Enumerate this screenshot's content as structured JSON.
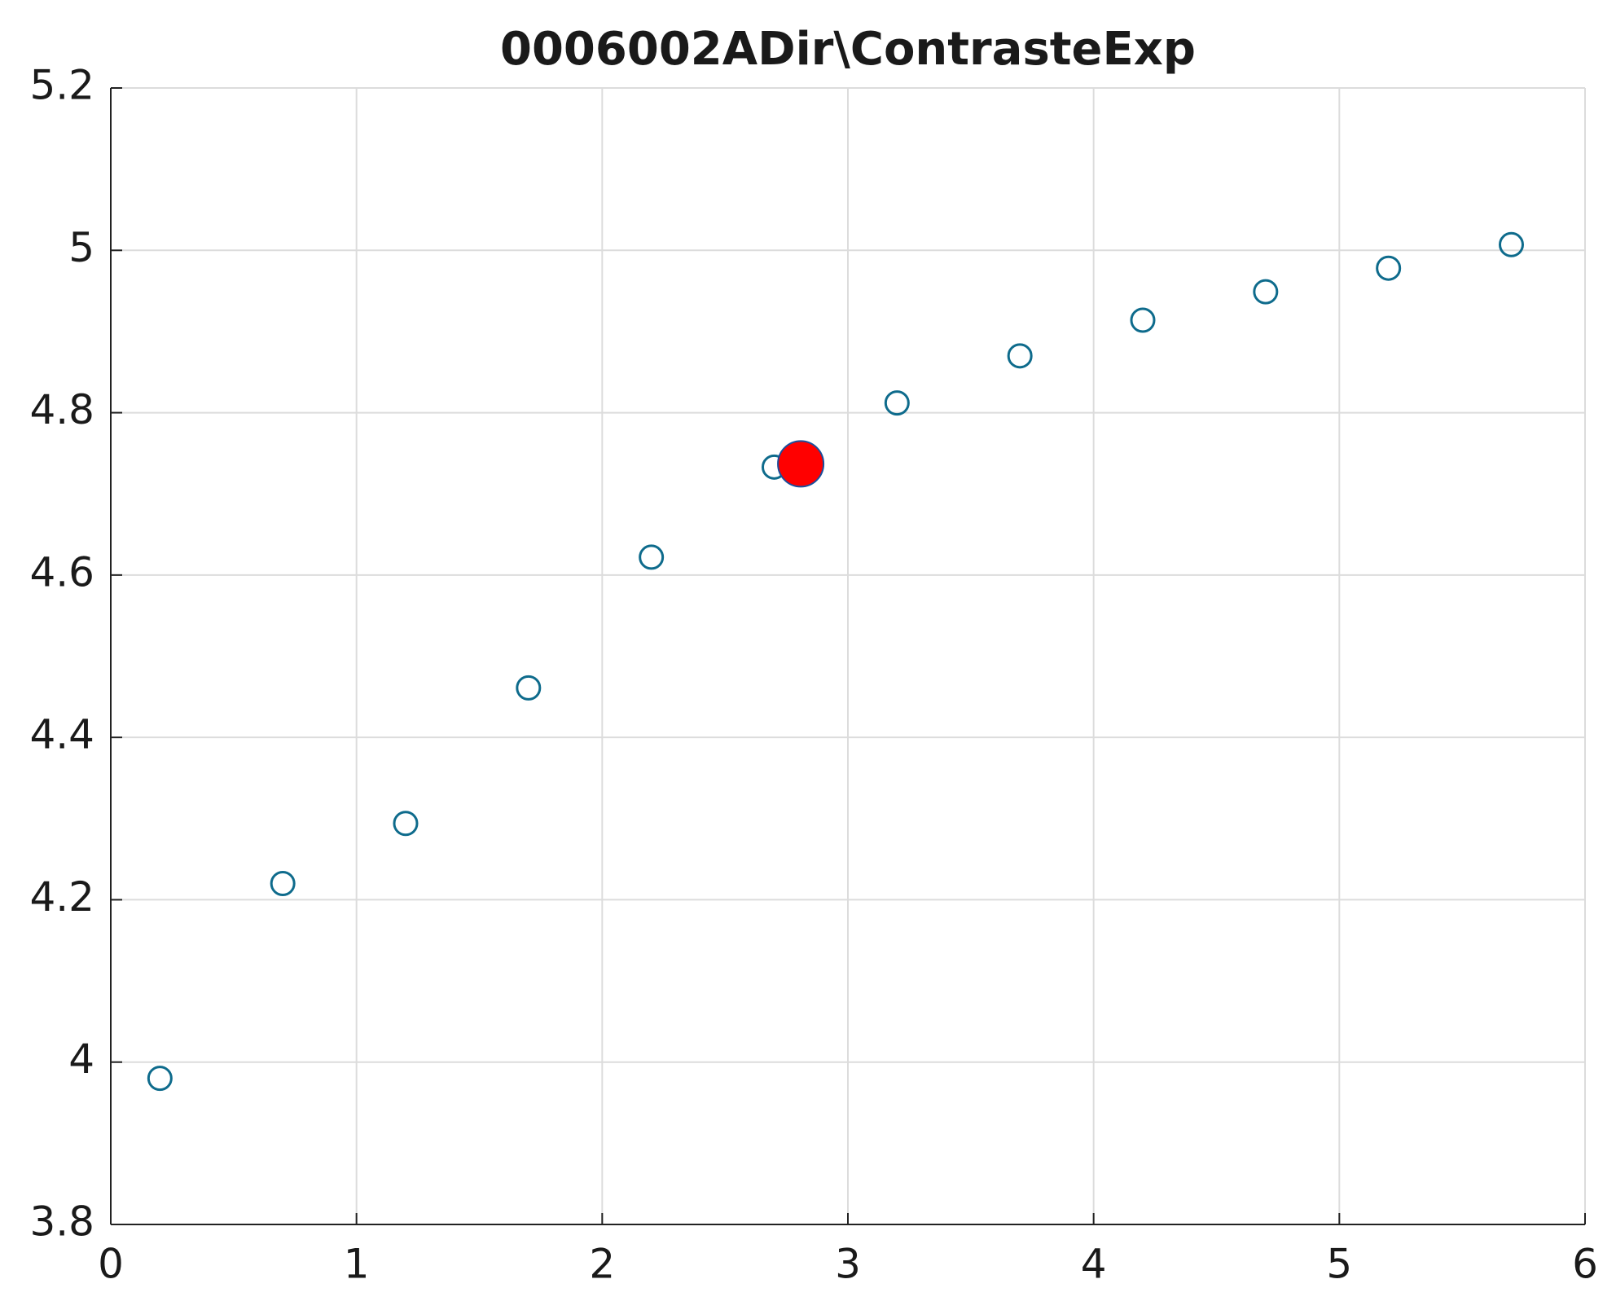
{
  "chart_data": {
    "type": "scatter",
    "title": "0006002ADir\\ContrasteExp",
    "xlim": [
      0,
      6
    ],
    "xticks": [
      0,
      1,
      2,
      3,
      4,
      5,
      6
    ],
    "ylim": [
      3.8,
      5.2
    ],
    "yticks": [
      3.8,
      4,
      4.2,
      4.4,
      4.6,
      4.8,
      5,
      5.2
    ],
    "grid": true,
    "series": [
      {
        "color": "#0e6b8c",
        "marker": "open",
        "x": [
          0.2,
          0.7,
          1.2,
          1.7,
          2.2,
          2.7,
          3.2,
          3.7,
          4.2,
          4.7,
          5.2,
          5.7
        ],
        "values": [
          3.98,
          4.22,
          4.294,
          4.461,
          4.622,
          4.733,
          4.812,
          4.87,
          4.914,
          4.949,
          4.978,
          5.007
        ]
      },
      {
        "color": "#ff0000",
        "marker": "filled",
        "x": [
          2.808
        ],
        "values": [
          4.737
        ]
      }
    ]
  }
}
